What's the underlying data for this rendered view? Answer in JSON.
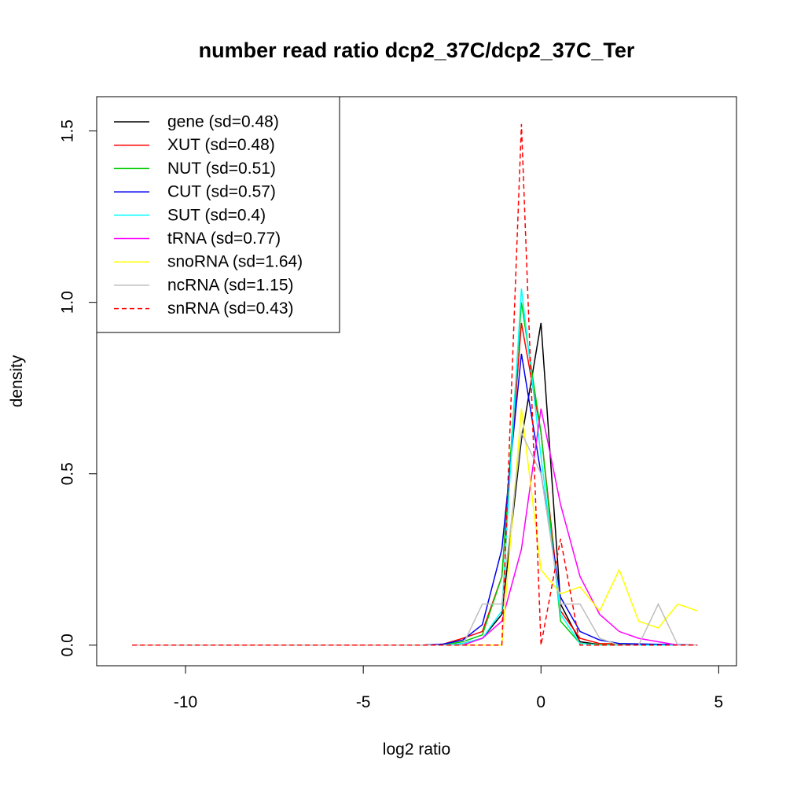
{
  "chart_data": {
    "type": "line",
    "title": "number read ratio dcp2_37C/dcp2_37C_Ter",
    "xlabel": "log2 ratio",
    "ylabel": "density",
    "xlim": [
      -12.5,
      5.5
    ],
    "ylim": [
      -0.06,
      1.6
    ],
    "xticks": [
      -10,
      -5,
      0,
      5
    ],
    "yticks": [
      0.0,
      0.5,
      1.0,
      1.5
    ],
    "xtick_labels": [
      "-10",
      "-5",
      "0",
      "5"
    ],
    "ytick_labels": [
      "0.0",
      "0.5",
      "1.0",
      "1.5"
    ],
    "legend_position": "top-left",
    "series": [
      {
        "name": "gene",
        "label": "gene (sd=0.48)",
        "color": "#000000",
        "dash": false,
        "x": [
          -11.5,
          -3.3,
          -2.75,
          -2.2,
          -1.65,
          -1.1,
          -0.55,
          0.0,
          0.55,
          1.1,
          1.65,
          4.4
        ],
        "y": [
          0,
          0,
          0,
          0.005,
          0.02,
          0.09,
          0.6,
          0.94,
          0.12,
          0.01,
          0.002,
          0
        ]
      },
      {
        "name": "XUT",
        "label": "XUT (sd=0.48)",
        "color": "#ff0000",
        "dash": false,
        "x": [
          -11.5,
          -3.3,
          -2.75,
          -2.2,
          -1.65,
          -1.1,
          -0.55,
          0.0,
          0.55,
          1.1,
          1.65,
          4.4
        ],
        "y": [
          0,
          0,
          0.003,
          0.02,
          0.04,
          0.2,
          0.94,
          0.62,
          0.1,
          0.02,
          0.005,
          0
        ]
      },
      {
        "name": "NUT",
        "label": "NUT (sd=0.51)",
        "color": "#00cc00",
        "dash": false,
        "x": [
          -11.5,
          -3.3,
          -2.75,
          -2.2,
          -1.65,
          -1.1,
          -0.55,
          0.0,
          0.55,
          1.1,
          1.65,
          4.4
        ],
        "y": [
          0,
          0,
          0.002,
          0.01,
          0.03,
          0.2,
          1.0,
          0.62,
          0.07,
          0.005,
          0.002,
          0
        ]
      },
      {
        "name": "CUT",
        "label": "CUT (sd=0.57)",
        "color": "#0000ee",
        "dash": false,
        "x": [
          -11.5,
          -3.3,
          -2.75,
          -2.2,
          -1.65,
          -1.1,
          -0.55,
          0.0,
          0.55,
          1.1,
          1.65,
          2.2,
          4.4
        ],
        "y": [
          0,
          0,
          0.003,
          0.015,
          0.06,
          0.28,
          0.85,
          0.5,
          0.14,
          0.04,
          0.015,
          0.005,
          0
        ]
      },
      {
        "name": "SUT",
        "label": "SUT (sd=0.4)",
        "color": "#00ffff",
        "dash": false,
        "x": [
          -11.5,
          -3.3,
          -2.75,
          -2.2,
          -1.65,
          -1.1,
          -0.55,
          0.0,
          0.55,
          1.1,
          1.65,
          4.4
        ],
        "y": [
          0,
          0,
          0,
          0.005,
          0.02,
          0.1,
          1.04,
          0.55,
          0.09,
          0.005,
          0,
          0
        ]
      },
      {
        "name": "tRNA",
        "label": "tRNA (sd=0.77)",
        "color": "#ff00ff",
        "dash": false,
        "x": [
          -11.5,
          -3.3,
          -2.75,
          -2.2,
          -1.65,
          -1.1,
          -0.55,
          0.0,
          0.55,
          1.1,
          1.65,
          2.2,
          2.75,
          3.3,
          3.85,
          4.4
        ],
        "y": [
          0,
          0,
          0,
          0,
          0.02,
          0.07,
          0.28,
          0.69,
          0.41,
          0.2,
          0.09,
          0.04,
          0.02,
          0.01,
          0,
          0
        ]
      },
      {
        "name": "snoRNA",
        "label": "snoRNA (sd=1.64)",
        "color": "#ffff00",
        "dash": false,
        "x": [
          -11.5,
          -1.1,
          -0.55,
          0.0,
          0.55,
          1.1,
          1.65,
          2.2,
          2.75,
          3.3,
          3.85,
          4.4
        ],
        "y": [
          0,
          0,
          0.69,
          0.22,
          0.15,
          0.17,
          0.1,
          0.22,
          0.07,
          0.05,
          0.12,
          0.1
        ]
      },
      {
        "name": "ncRNA",
        "label": "ncRNA (sd=1.15)",
        "color": "#bebebe",
        "dash": false,
        "x": [
          -11.5,
          -2.2,
          -1.65,
          -1.1,
          -0.55,
          0.0,
          0.55,
          1.1,
          1.65,
          2.2,
          2.75,
          3.3,
          3.85,
          4.4
        ],
        "y": [
          0,
          0,
          0.12,
          0.12,
          0.62,
          0.5,
          0.12,
          0.12,
          0.02,
          0,
          0,
          0.12,
          0,
          0
        ]
      },
      {
        "name": "snRNA",
        "label": "snRNA (sd=0.43)",
        "color": "#ff0000",
        "dash": true,
        "x": [
          -11.5,
          -1.1,
          -0.55,
          0.0,
          0.55,
          1.1,
          4.4
        ],
        "y": [
          0,
          0,
          1.52,
          0,
          0.31,
          0,
          0
        ]
      }
    ]
  }
}
